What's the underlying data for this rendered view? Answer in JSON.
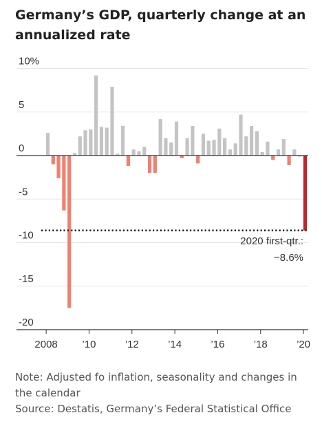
{
  "title": "Germany’s GDP, quarterly change at an annualized rate",
  "footnote": {
    "note": "Note: Adjusted fo inflation, seasonality and changes in the calendar",
    "source": "Source: Destatis, Germany’s Federal Statistical Office"
  },
  "colors": {
    "positive": "#c4c4c4",
    "negative": "#ef8070",
    "highlight": "#c0232b",
    "axis": "#333333",
    "grid": "#e6e6e6"
  },
  "chart_data": {
    "type": "bar",
    "title": "Germany’s GDP, quarterly change at an annualized rate",
    "xlabel": "",
    "ylabel": "",
    "ylim": [
      -20,
      10
    ],
    "grid": true,
    "y_ticks": [
      {
        "value": 10,
        "label": "10%"
      },
      {
        "value": 5,
        "label": "5"
      },
      {
        "value": 0,
        "label": "0"
      },
      {
        "value": -5,
        "label": "-5"
      },
      {
        "value": -10,
        "label": "-10"
      },
      {
        "value": -15,
        "label": "-15"
      },
      {
        "value": -20,
        "label": "-20"
      }
    ],
    "x_ticks": [
      {
        "value": 2008,
        "label": "2008"
      },
      {
        "value": 2010,
        "label": "’10"
      },
      {
        "value": 2012,
        "label": "’12"
      },
      {
        "value": 2014,
        "label": "’14"
      },
      {
        "value": 2016,
        "label": "’16"
      },
      {
        "value": 2018,
        "label": "’18"
      },
      {
        "value": 2020,
        "label": "’20"
      }
    ],
    "categories": [
      "2008 Q1",
      "2008 Q2",
      "2008 Q3",
      "2008 Q4",
      "2009 Q1",
      "2009 Q2",
      "2009 Q3",
      "2009 Q4",
      "2010 Q1",
      "2010 Q2",
      "2010 Q3",
      "2010 Q4",
      "2011 Q1",
      "2011 Q2",
      "2011 Q3",
      "2011 Q4",
      "2012 Q1",
      "2012 Q2",
      "2012 Q3",
      "2012 Q4",
      "2013 Q1",
      "2013 Q2",
      "2013 Q3",
      "2013 Q4",
      "2014 Q1",
      "2014 Q2",
      "2014 Q3",
      "2014 Q4",
      "2015 Q1",
      "2015 Q2",
      "2015 Q3",
      "2015 Q4",
      "2016 Q1",
      "2016 Q2",
      "2016 Q3",
      "2016 Q4",
      "2017 Q1",
      "2017 Q2",
      "2017 Q3",
      "2017 Q4",
      "2018 Q1",
      "2018 Q2",
      "2018 Q3",
      "2018 Q4",
      "2019 Q1",
      "2019 Q2",
      "2019 Q3",
      "2019 Q4",
      "2020 Q1"
    ],
    "values": [
      2.6,
      -1.0,
      -2.6,
      -6.3,
      -17.5,
      0.3,
      2.2,
      2.9,
      3.0,
      9.2,
      3.3,
      3.2,
      7.9,
      0.2,
      3.4,
      -1.2,
      0.7,
      0.5,
      1.0,
      -2.0,
      -2.0,
      4.2,
      2.0,
      1.5,
      3.9,
      -0.3,
      2.0,
      3.4,
      -0.9,
      2.5,
      1.7,
      1.8,
      3.1,
      2.0,
      0.7,
      1.4,
      4.7,
      2.2,
      3.4,
      2.8,
      0.4,
      1.6,
      -0.5,
      0.7,
      1.9,
      -1.1,
      0.7,
      -0.1,
      -8.6
    ],
    "highlight_category": "2020 Q1",
    "reference_line": {
      "value": -8.6,
      "style": "dotted"
    },
    "annotation": {
      "line1": "2020 first-qtr.:",
      "line2": "−8.6%"
    }
  }
}
